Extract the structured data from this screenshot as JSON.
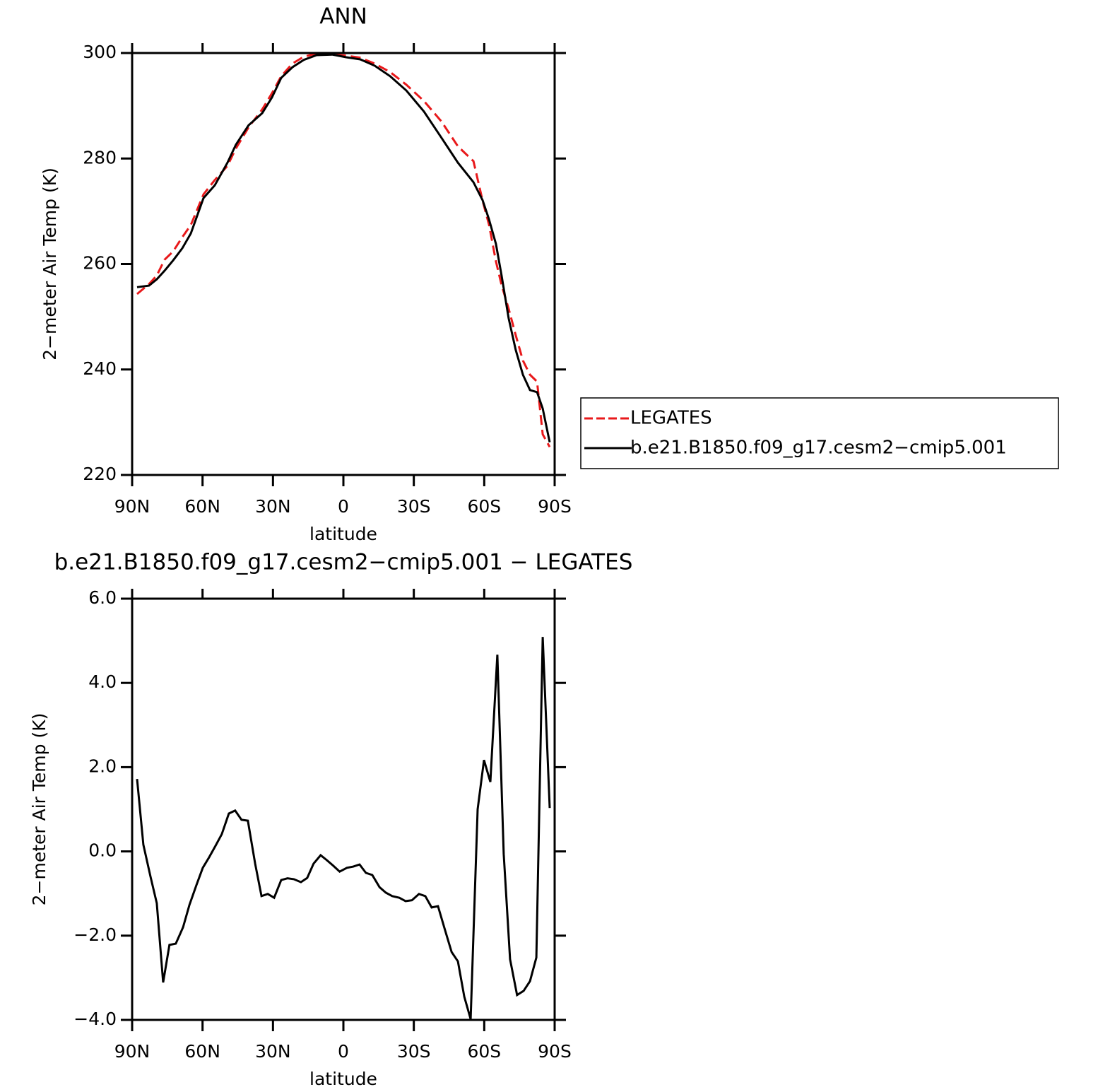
{
  "chart_data": [
    {
      "type": "line",
      "title": "ANN",
      "x_label": "latitude",
      "y_label": "2−meter Air Temp (K)",
      "x": [
        87.9,
        82.8,
        79.5,
        76.2,
        72.5,
        68.6,
        65.0,
        59.6,
        54.8,
        49.4,
        45.8,
        40.4,
        34.6,
        30.4,
        26.5,
        21.7,
        16.9,
        11.4,
        4.8,
        -1.2,
        -7.2,
        -13.3,
        -19.9,
        -26.8,
        -34.3,
        -41.8,
        -48.8,
        -55.4,
        -59.3,
        -62.0,
        -65.0,
        -67.4,
        -70.4,
        -73.4,
        -76.5,
        -79.5,
        -82.5,
        -84.9,
        -87.9
      ],
      "series": [
        {
          "name": "LEGATES",
          "color": "#e8191b",
          "line_style": "dashed",
          "values": [
            254.3,
            256.2,
            257.8,
            260.8,
            262.4,
            265.1,
            267.4,
            273.2,
            275.9,
            278.6,
            281.9,
            285.9,
            289.3,
            292.4,
            295.6,
            298.0,
            299.3,
            299.9,
            299.7,
            299.5,
            299.1,
            298.0,
            296.4,
            294.0,
            290.9,
            287.0,
            282.3,
            279.5,
            272.0,
            267.5,
            260.5,
            256.0,
            251.5,
            246.5,
            241.7,
            239.0,
            237.7,
            227.7,
            225.3
          ]
        },
        {
          "name": "b.e21.B1850.f09_g17.cesm2−cmip5.001",
          "color": "#000000",
          "line_style": "solid",
          "values": [
            255.6,
            255.9,
            257.1,
            258.7,
            260.7,
            263.0,
            265.8,
            272.5,
            274.9,
            279.2,
            282.6,
            286.3,
            288.6,
            291.6,
            295.3,
            297.3,
            298.7,
            299.6,
            299.7,
            299.2,
            298.8,
            297.6,
            295.6,
            292.9,
            288.9,
            283.9,
            279.2,
            275.5,
            272.1,
            268.5,
            263.8,
            257.8,
            249.7,
            243.7,
            239.0,
            236.1,
            235.7,
            232.6,
            226.2
          ]
        }
      ],
      "xlim": [
        90,
        -90
      ],
      "xticks": [
        {
          "value": 90,
          "label": "90N"
        },
        {
          "value": 60,
          "label": "60N"
        },
        {
          "value": 30,
          "label": "30N"
        },
        0,
        {
          "value": -30,
          "label": "30S"
        },
        {
          "value": -60,
          "label": "60S"
        },
        {
          "value": -90,
          "label": "90S"
        }
      ],
      "ylim": [
        220,
        300
      ],
      "yticks": [
        220,
        240,
        260,
        280,
        300
      ],
      "legend": "right"
    },
    {
      "type": "line",
      "title": "b.e21.B1850.f09_g17.cesm2−cmip5.001  −  LEGATES",
      "x_label": "latitude",
      "y_label": "2−meter Air Temp (K)",
      "x": [
        87.9,
        85.2,
        82.2,
        79.5,
        76.8,
        74.1,
        71.4,
        68.3,
        65.6,
        62.6,
        59.9,
        57.2,
        54.5,
        51.8,
        48.8,
        46.1,
        43.4,
        40.7,
        37.6,
        34.9,
        32.2,
        29.5,
        26.5,
        23.8,
        21.1,
        18.1,
        15.4,
        12.7,
        9.7,
        7.0,
        4.3,
        1.6,
        -1.5,
        -4.2,
        -6.9,
        -9.6,
        -12.3,
        -15.4,
        -18.1,
        -20.8,
        -23.8,
        -26.5,
        -29.2,
        -32.2,
        -34.9,
        -37.6,
        -40.3,
        -43.3,
        -46.1,
        -48.8,
        -51.5,
        -54.2,
        -57.2,
        -59.9,
        -62.6,
        -65.6,
        -68.3,
        -71.0,
        -74.0,
        -76.8,
        -79.5,
        -82.2,
        -84.9,
        -87.9
      ],
      "series": [
        {
          "color": "#000000",
          "line_style": "solid",
          "values": [
            1.72,
            0.16,
            -0.59,
            -1.23,
            -3.11,
            -2.22,
            -2.19,
            -1.8,
            -1.27,
            -0.8,
            -0.39,
            -0.14,
            0.13,
            0.41,
            0.9,
            0.97,
            0.75,
            0.73,
            -0.29,
            -1.06,
            -1.01,
            -1.1,
            -0.68,
            -0.64,
            -0.66,
            -0.73,
            -0.63,
            -0.29,
            -0.09,
            -0.21,
            -0.34,
            -0.48,
            -0.39,
            -0.36,
            -0.31,
            -0.51,
            -0.56,
            -0.85,
            -0.98,
            -1.06,
            -1.1,
            -1.18,
            -1.16,
            -1.01,
            -1.06,
            -1.33,
            -1.3,
            -1.87,
            -2.39,
            -2.61,
            -3.45,
            -3.98,
            1.0,
            2.17,
            1.65,
            4.67,
            -0.06,
            -2.56,
            -3.41,
            -3.31,
            -3.08,
            -2.52,
            5.09,
            1.03
          ]
        }
      ],
      "xlim": [
        90,
        -90
      ],
      "xticks": [
        {
          "value": 90,
          "label": "90N"
        },
        {
          "value": 60,
          "label": "60N"
        },
        {
          "value": 30,
          "label": "30N"
        },
        0,
        {
          "value": -30,
          "label": "30S"
        },
        {
          "value": -60,
          "label": "60S"
        },
        {
          "value": -90,
          "label": "90S"
        }
      ],
      "ylim": [
        -4,
        6
      ],
      "yticks": [
        {
          "value": -4,
          "label": "−4.0"
        },
        {
          "value": -2,
          "label": "−2.0"
        },
        {
          "value": 0,
          "label": "0.0"
        },
        {
          "value": 2,
          "label": "2.0"
        },
        {
          "value": 4,
          "label": "4.0"
        },
        {
          "value": 6,
          "label": "6.0"
        }
      ]
    }
  ]
}
